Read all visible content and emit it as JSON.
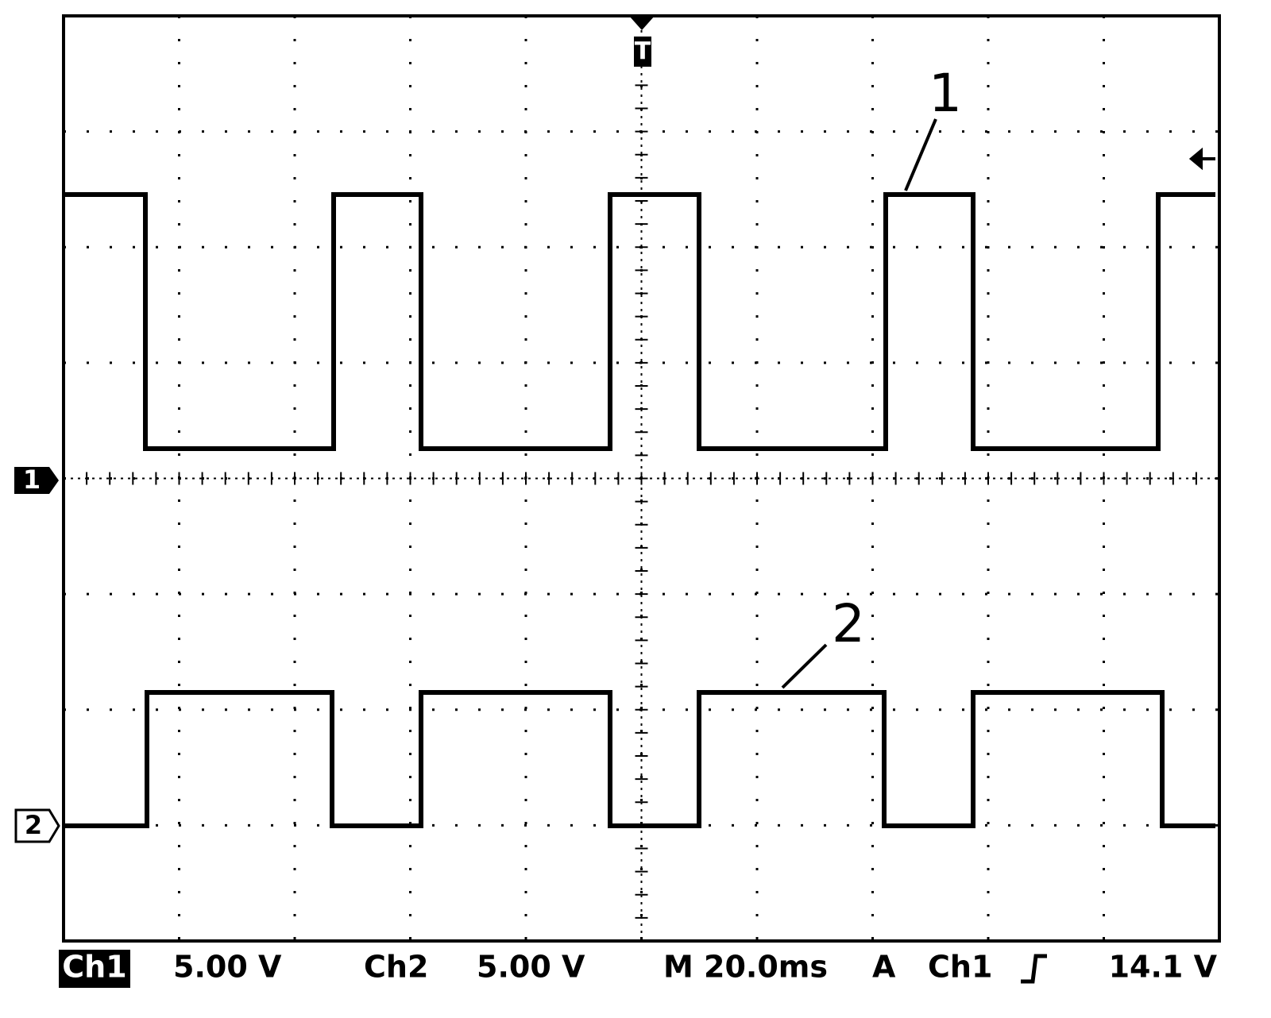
{
  "markers": {
    "trigger": "T",
    "ch1": "1",
    "ch2": "2"
  },
  "annotations": [
    "1",
    "2"
  ],
  "status": {
    "ch1_label": "Ch1",
    "ch1_scale": "5.00 V",
    "ch2_label": "Ch2",
    "ch2_scale": "5.00 V",
    "timebase": "M 20.0ms",
    "trigger_mode": "A",
    "trigger_source": "Ch1",
    "trigger_level": "14.1 V"
  }
}
